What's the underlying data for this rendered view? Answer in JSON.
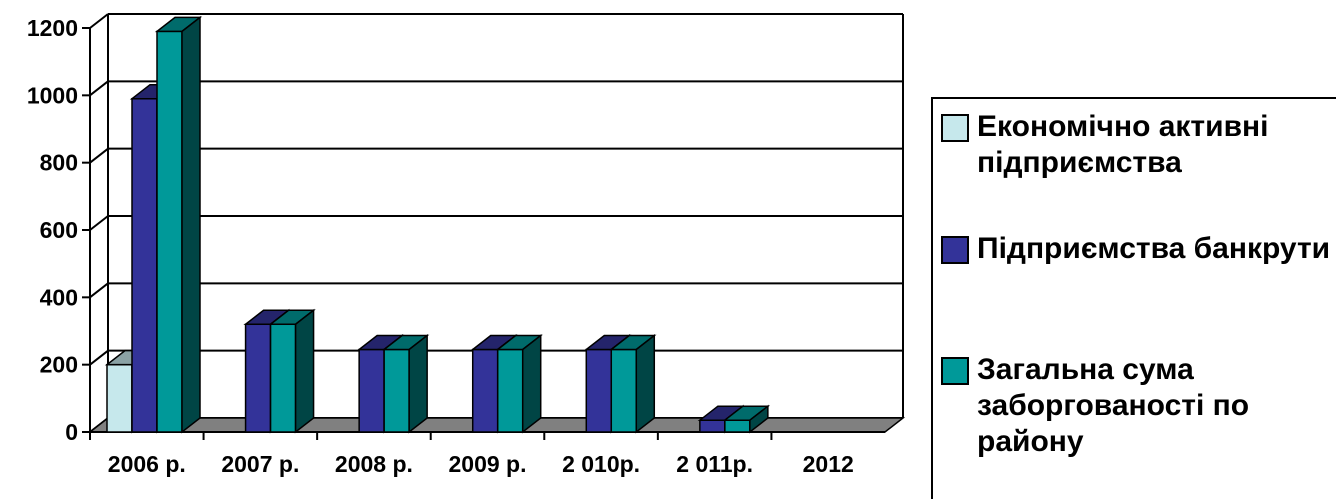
{
  "chart_data": {
    "type": "bar",
    "title": "",
    "xlabel": "",
    "ylabel": "",
    "categories": [
      "2006 р.",
      "2007 р.",
      "2008 р.",
      "2009 р.",
      "2 010р.",
      "2 011р.",
      "2012"
    ],
    "series": [
      {
        "name": "Економічно активні підприємства",
        "values": [
          200,
          0,
          0,
          0,
          0,
          0,
          0
        ],
        "color": "#c6e8ec"
      },
      {
        "name": "Підприємства банкрути",
        "values": [
          990,
          320,
          245,
          245,
          245,
          35,
          0
        ],
        "color": "#333399"
      },
      {
        "name": "Загальна сума заборгованості по району",
        "values": [
          1190,
          320,
          245,
          245,
          245,
          35,
          0
        ],
        "color": "#009999"
      }
    ],
    "ylim": [
      0,
      1200
    ],
    "yticks": [
      "0",
      "200",
      "400",
      "600",
      "800",
      "1000",
      "1200"
    ],
    "grid": true,
    "legend_position": "right",
    "three_d": true
  }
}
